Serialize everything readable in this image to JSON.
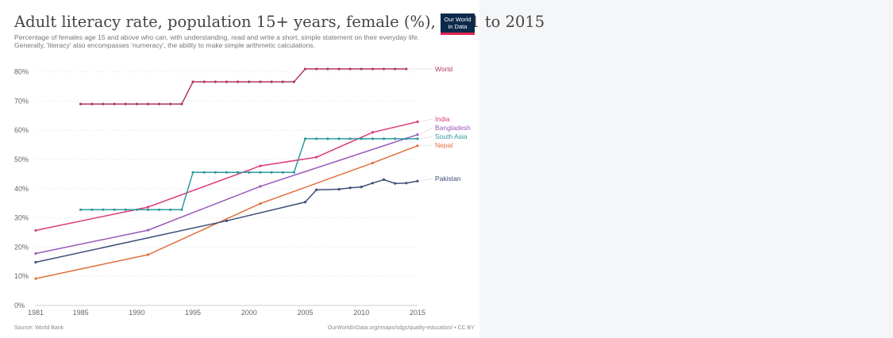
{
  "header": {
    "title": "Adult literacy rate, population 15+ years, female (%), 1981 to 2015",
    "subtitle": "Percentage of females age 15 and above who can, with understanding, read and write a short, simple statement on their everyday life. Generally, 'literacy' also encompasses 'numeracy', the ability to make simple arithmetic calculations.",
    "logo_line1": "Our World",
    "logo_line2": "in Data"
  },
  "footer": {
    "source": "Source: World Bank",
    "credit": "OurWorldInData.org/rmaps/sdgs/quality-education/ • CC BY"
  },
  "chart_data": {
    "type": "line",
    "title": "Adult literacy rate, population 15+ years, female (%), 1981 to 2015",
    "xlabel": "",
    "ylabel": "",
    "xlim": [
      1981,
      2015
    ],
    "ylim": [
      0,
      82
    ],
    "x_ticks": [
      1981,
      1985,
      1990,
      1995,
      2000,
      2005,
      2010,
      2015
    ],
    "y_ticks": [
      0,
      10,
      20,
      30,
      40,
      50,
      60,
      70,
      80
    ],
    "y_tick_labels": [
      "0%",
      "10%",
      "20%",
      "30%",
      "40%",
      "50%",
      "60%",
      "70%",
      "80%"
    ],
    "grid": true,
    "legend": "right, labels at line ends",
    "series": [
      {
        "name": "World",
        "color": "#b13a5a",
        "points": [
          [
            1985,
            69
          ],
          [
            1986,
            69
          ],
          [
            1987,
            69
          ],
          [
            1988,
            69
          ],
          [
            1989,
            69
          ],
          [
            1990,
            69
          ],
          [
            1991,
            69
          ],
          [
            1992,
            69
          ],
          [
            1993,
            69
          ],
          [
            1994,
            69
          ],
          [
            1995,
            76.6
          ],
          [
            1996,
            76.6
          ],
          [
            1997,
            76.6
          ],
          [
            1998,
            76.6
          ],
          [
            1999,
            76.6
          ],
          [
            2000,
            76.6
          ],
          [
            2001,
            76.6
          ],
          [
            2002,
            76.6
          ],
          [
            2003,
            76.6
          ],
          [
            2004,
            76.6
          ],
          [
            2005,
            81
          ],
          [
            2006,
            81
          ],
          [
            2007,
            81
          ],
          [
            2008,
            81
          ],
          [
            2009,
            81
          ],
          [
            2010,
            81
          ],
          [
            2011,
            81
          ],
          [
            2012,
            81
          ],
          [
            2013,
            81
          ],
          [
            2014,
            81
          ]
        ]
      },
      {
        "name": "India",
        "color": "#de3a7d",
        "points": [
          [
            1981,
            25.7
          ],
          [
            1991,
            33.7
          ],
          [
            2001,
            47.8
          ],
          [
            2006,
            50.8
          ],
          [
            2011,
            59.3
          ],
          [
            2015,
            62.9
          ]
        ]
      },
      {
        "name": "Bangladesh",
        "color": "#9a5ab8",
        "points": [
          [
            1981,
            17.8
          ],
          [
            1991,
            25.8
          ],
          [
            2001,
            40.8
          ],
          [
            2015,
            58.5
          ]
        ]
      },
      {
        "name": "South Asia",
        "color": "#2e9a9e",
        "points": [
          [
            1985,
            32.8
          ],
          [
            1986,
            32.8
          ],
          [
            1987,
            32.8
          ],
          [
            1988,
            32.8
          ],
          [
            1989,
            32.8
          ],
          [
            1990,
            32.8
          ],
          [
            1991,
            32.8
          ],
          [
            1992,
            32.8
          ],
          [
            1993,
            32.8
          ],
          [
            1994,
            32.8
          ],
          [
            1995,
            45.6
          ],
          [
            1996,
            45.6
          ],
          [
            1997,
            45.6
          ],
          [
            1998,
            45.6
          ],
          [
            1999,
            45.6
          ],
          [
            2000,
            45.6
          ],
          [
            2001,
            45.6
          ],
          [
            2002,
            45.6
          ],
          [
            2003,
            45.6
          ],
          [
            2004,
            45.6
          ],
          [
            2005,
            57.1
          ],
          [
            2006,
            57.1
          ],
          [
            2007,
            57.1
          ],
          [
            2008,
            57.1
          ],
          [
            2009,
            57.1
          ],
          [
            2010,
            57.1
          ],
          [
            2011,
            57.1
          ],
          [
            2012,
            57.1
          ],
          [
            2013,
            57.1
          ],
          [
            2014,
            57.1
          ],
          [
            2015,
            57.1
          ]
        ]
      },
      {
        "name": "Nepal",
        "color": "#e0703c",
        "points": [
          [
            1981,
            9.2
          ],
          [
            1991,
            17.4
          ],
          [
            2001,
            34.9
          ],
          [
            2011,
            48.8
          ],
          [
            2015,
            54.7
          ]
        ]
      },
      {
        "name": "Pakistan",
        "color": "#3b4f78",
        "points": [
          [
            1981,
            14.8
          ],
          [
            1998,
            29.0
          ],
          [
            2005,
            35.4
          ],
          [
            2006,
            39.6
          ],
          [
            2008,
            39.8
          ],
          [
            2009,
            40.3
          ],
          [
            2010,
            40.6
          ],
          [
            2011,
            41.9
          ],
          [
            2012,
            43.1
          ],
          [
            2013,
            41.8
          ],
          [
            2014,
            41.9
          ],
          [
            2015,
            42.6
          ]
        ]
      }
    ]
  }
}
